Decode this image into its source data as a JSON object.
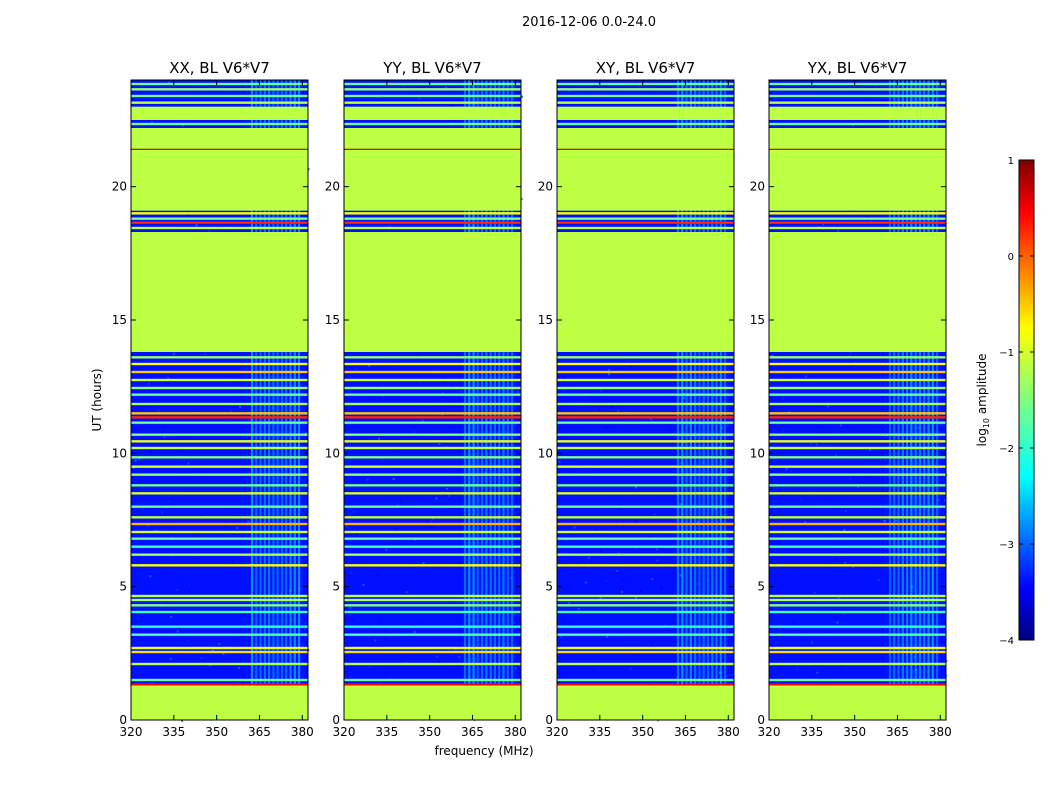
{
  "chart_data": {
    "type": "heatmap",
    "suptitle": "2016-12-06 0.0-24.0",
    "xlabel": "frequency (MHz)",
    "ylabel": "UT (hours)",
    "xlim": [
      320,
      382
    ],
    "ylim": [
      0,
      24
    ],
    "xticks": [
      "320",
      "335",
      "350",
      "365",
      "380"
    ],
    "xtick_values": [
      320,
      335,
      350,
      365,
      380
    ],
    "yticks": [
      "0",
      "5",
      "10",
      "15",
      "20"
    ],
    "ytick_values": [
      0,
      5,
      10,
      15,
      20
    ],
    "panels": [
      {
        "title": "XX, BL V6*V7"
      },
      {
        "title": "YY, BL V6*V7"
      },
      {
        "title": "XY, BL V6*V7"
      },
      {
        "title": "YX, BL V6*V7"
      }
    ],
    "colorbar": {
      "label_prefix": "log",
      "label_subscript": "10",
      "label_suffix": " amplitude",
      "min": -4,
      "max": 1,
      "ticks": [
        "1",
        "0",
        "−1",
        "−2",
        "−3",
        "−4"
      ],
      "tick_values": [
        1,
        0,
        -1,
        -2,
        -3,
        -4
      ],
      "colormap": "jet"
    },
    "flagged_level_log10": -1.2,
    "background_level_log10": -3.3,
    "flagged_ranges_hours": [
      [
        0.0,
        1.3
      ],
      [
        13.8,
        18.3
      ],
      [
        19.1,
        22.2
      ],
      [
        22.5,
        23.0
      ]
    ],
    "rfi_band_mhz": [
      362,
      380
    ],
    "rfi_level_log10": -2.1,
    "lines_hours": [
      {
        "t": 1.32,
        "v": 0.2
      },
      {
        "t": 1.5,
        "v": -1.6
      },
      {
        "t": 2.1,
        "v": -1.2
      },
      {
        "t": 2.55,
        "v": -0.7
      },
      {
        "t": 2.7,
        "v": -1.0
      },
      {
        "t": 3.2,
        "v": -1.7
      },
      {
        "t": 3.5,
        "v": -1.9
      },
      {
        "t": 4.05,
        "v": -1.8
      },
      {
        "t": 4.3,
        "v": -1.5
      },
      {
        "t": 4.5,
        "v": -1.3
      },
      {
        "t": 4.65,
        "v": -1.2
      },
      {
        "t": 5.8,
        "v": -0.9
      },
      {
        "t": 6.2,
        "v": -1.3
      },
      {
        "t": 6.5,
        "v": -1.8
      },
      {
        "t": 6.8,
        "v": -1.6
      },
      {
        "t": 7.05,
        "v": -1.1
      },
      {
        "t": 7.35,
        "v": -0.5
      },
      {
        "t": 7.6,
        "v": -1.2
      },
      {
        "t": 8.0,
        "v": -1.6
      },
      {
        "t": 8.5,
        "v": -1.1
      },
      {
        "t": 8.8,
        "v": -1.6
      },
      {
        "t": 9.2,
        "v": -1.4
      },
      {
        "t": 9.5,
        "v": -1.1
      },
      {
        "t": 9.85,
        "v": -1.5
      },
      {
        "t": 10.2,
        "v": -1.2
      },
      {
        "t": 10.45,
        "v": -1.0
      },
      {
        "t": 10.7,
        "v": -1.5
      },
      {
        "t": 11.15,
        "v": -1.6
      },
      {
        "t": 11.35,
        "v": 0.2
      },
      {
        "t": 11.5,
        "v": -0.6
      },
      {
        "t": 11.85,
        "v": -1.3
      },
      {
        "t": 12.2,
        "v": -1.6
      },
      {
        "t": 12.45,
        "v": -1.4
      },
      {
        "t": 12.75,
        "v": -1.1
      },
      {
        "t": 13.05,
        "v": -0.6
      },
      {
        "t": 13.35,
        "v": -0.9
      },
      {
        "t": 13.6,
        "v": -1.4
      },
      {
        "t": 18.45,
        "v": -1.2
      },
      {
        "t": 18.65,
        "v": 0.2
      },
      {
        "t": 18.8,
        "v": -1.5
      },
      {
        "t": 19.0,
        "v": -0.9
      },
      {
        "t": 21.4,
        "v": 0.5
      },
      {
        "t": 22.35,
        "v": -1.6
      },
      {
        "t": 23.15,
        "v": -1.2
      },
      {
        "t": 23.4,
        "v": -1.6
      },
      {
        "t": 23.65,
        "v": -1.4
      },
      {
        "t": 23.85,
        "v": -1.6
      }
    ]
  }
}
